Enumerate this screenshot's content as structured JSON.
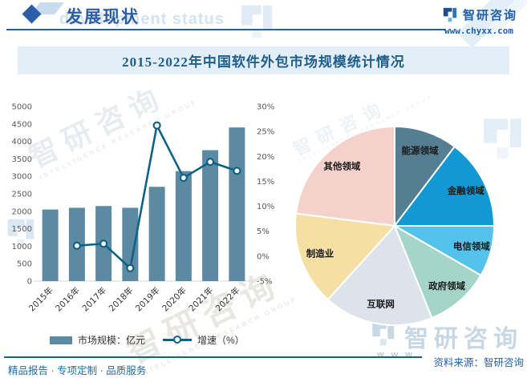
{
  "header": {
    "section_title": "发展现状",
    "ghost_text": "development status",
    "brand": {
      "name": "智研咨询",
      "website": "www.chyxx.com"
    }
  },
  "chart_title": "2015-2022年中国软件外包市场规模统计情况",
  "chart_data": [
    {
      "type": "bar",
      "title": "2015-2022年中国软件外包市场规模统计情况",
      "categories": [
        "2015年",
        "2016年",
        "2017年",
        "2018年",
        "2019年",
        "2020年",
        "2021年",
        "2022年"
      ],
      "series": [
        {
          "name": "市场规模：亿元",
          "type": "bar",
          "axis": "left",
          "color": "#5c8aa2",
          "values": [
            2050,
            2100,
            2150,
            2100,
            2700,
            3150,
            3750,
            4400
          ]
        },
        {
          "name": "增速（%）",
          "type": "line",
          "axis": "right",
          "color": "#0e6286",
          "values": [
            null,
            2.1,
            2.5,
            -2.4,
            26.2,
            15.7,
            18.9,
            17.1
          ]
        }
      ],
      "left_axis": {
        "min": 0,
        "max": 5000,
        "step": 500
      },
      "right_axis": {
        "min": -5,
        "max": 30,
        "step": 5,
        "suffix": "%"
      },
      "grid": false,
      "legend_position": "bottom"
    },
    {
      "type": "pie",
      "slices": [
        {
          "label": "能源领域",
          "value": 10.3,
          "color": "#567e92"
        },
        {
          "label": "金融领域",
          "value": 14.7,
          "color": "#1299d4"
        },
        {
          "label": "电信领域",
          "value": 8.3,
          "color": "#55c2ec"
        },
        {
          "label": "政府领域",
          "value": 10.6,
          "color": "#a5d5c9"
        },
        {
          "label": "互联网",
          "value": 17.8,
          "color": "#dde3ea"
        },
        {
          "label": "制造业",
          "value": 15.3,
          "color": "#f6dfa3"
        },
        {
          "label": "其他领域",
          "value": 23.0,
          "color": "#f4d1cb"
        }
      ],
      "start_angle_deg": 0,
      "direction": "clockwise"
    }
  ],
  "footer": {
    "services": "精品报告 · 专项定制 · 品质服务",
    "source": "资料来源：智研咨询"
  },
  "watermarks": {
    "brand_text": "智研咨询",
    "brand_sub": "INTELLIGENCE RESEARCH GROUP",
    "www_text": "w w w ."
  },
  "colors": {
    "accent": "#2b5ea6",
    "title_band_bg": "#e4eef7",
    "divider": "#1c5d8c",
    "bar": "#5c8aa2",
    "line": "#0e6286"
  }
}
